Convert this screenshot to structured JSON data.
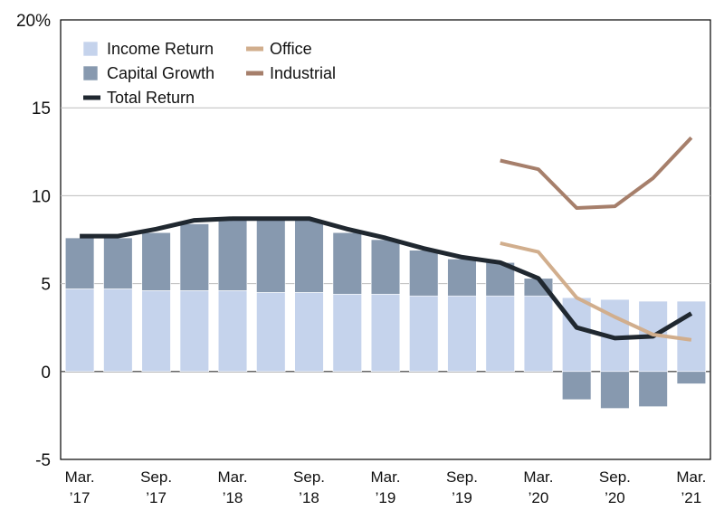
{
  "chart_data": {
    "type": "bar",
    "categories": [
      "Mar. '17",
      "Jun. '17",
      "Sep. '17",
      "Dec. '17",
      "Mar. '18",
      "Jun. '18",
      "Sep. '18",
      "Dec. '18",
      "Mar. '19",
      "Jun. '19",
      "Sep. '19",
      "Dec. '19",
      "Mar. '20",
      "Jun. '20",
      "Sep. '20",
      "Dec. '20",
      "Mar. '21"
    ],
    "x_tick_labels": [
      {
        "index": 0,
        "line1": "Mar.",
        "line2": "’17"
      },
      {
        "index": 2,
        "line1": "Sep.",
        "line2": "’17"
      },
      {
        "index": 4,
        "line1": "Mar.",
        "line2": "’18"
      },
      {
        "index": 6,
        "line1": "Sep.",
        "line2": "’18"
      },
      {
        "index": 8,
        "line1": "Mar.",
        "line2": "’19"
      },
      {
        "index": 10,
        "line1": "Sep.",
        "line2": "’19"
      },
      {
        "index": 12,
        "line1": "Mar.",
        "line2": "’20"
      },
      {
        "index": 14,
        "line1": "Sep.",
        "line2": "’20"
      },
      {
        "index": 16,
        "line1": "Mar.",
        "line2": "’21"
      }
    ],
    "y_tick_labels": [
      {
        "value": 20,
        "label": "20%"
      },
      {
        "value": 15,
        "label": "15"
      },
      {
        "value": 10,
        "label": "10"
      },
      {
        "value": 5,
        "label": "5"
      },
      {
        "value": 0,
        "label": "0"
      },
      {
        "value": -5,
        "label": "-5"
      }
    ],
    "ylim": [
      -5,
      20
    ],
    "gridlines": [
      15,
      10,
      5,
      0
    ],
    "stacked_series": [
      {
        "name": "Income Return",
        "color": "#c5d3ec",
        "values": [
          4.7,
          4.7,
          4.6,
          4.6,
          4.6,
          4.5,
          4.5,
          4.4,
          4.4,
          4.3,
          4.3,
          4.3,
          4.3,
          4.2,
          4.1,
          4.0,
          4.0
        ]
      },
      {
        "name": "Capital Growth",
        "color": "#8799af",
        "values": [
          2.9,
          2.9,
          3.3,
          3.8,
          4.1,
          4.2,
          4.1,
          3.5,
          3.1,
          2.6,
          2.1,
          1.9,
          1.0,
          -1.6,
          -2.1,
          -2.0,
          -0.7
        ]
      }
    ],
    "line_series": [
      {
        "name": "Total Return",
        "color": "#202830",
        "width": 5,
        "values": [
          7.7,
          7.7,
          8.1,
          8.6,
          8.7,
          8.7,
          8.7,
          8.1,
          7.6,
          7.0,
          6.5,
          6.2,
          5.3,
          2.5,
          1.9,
          2.0,
          3.3
        ]
      },
      {
        "name": "Office",
        "color": "#d1ae8d",
        "width": 4,
        "values": [
          null,
          null,
          null,
          null,
          null,
          null,
          null,
          null,
          null,
          null,
          null,
          7.3,
          6.8,
          4.2,
          3.1,
          2.1,
          1.8
        ]
      },
      {
        "name": "Industrial",
        "color": "#a67f6b",
        "width": 4,
        "values": [
          null,
          null,
          null,
          null,
          null,
          null,
          null,
          null,
          null,
          null,
          null,
          12.0,
          11.5,
          9.3,
          9.4,
          11.0,
          13.3
        ]
      }
    ],
    "legend": [
      {
        "name": "Income Return",
        "kind": "box",
        "color": "#c5d3ec"
      },
      {
        "name": "Capital Growth",
        "kind": "box",
        "color": "#8799af"
      },
      {
        "name": "Total Return",
        "kind": "line",
        "color": "#202830"
      },
      {
        "name": "Office",
        "kind": "line",
        "color": "#d1ae8d"
      },
      {
        "name": "Industrial",
        "kind": "line",
        "color": "#a67f6b"
      }
    ],
    "legend_position": "top-left",
    "grid": true
  }
}
